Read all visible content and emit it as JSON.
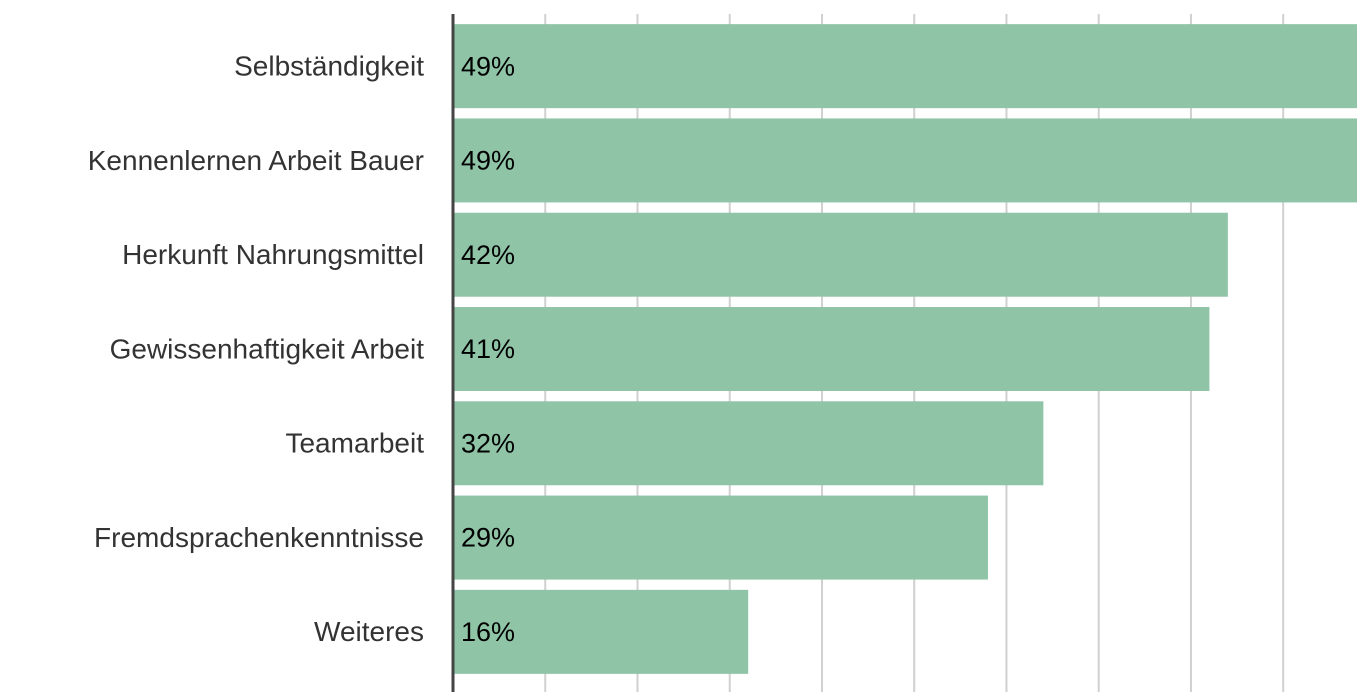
{
  "chart_data": {
    "type": "bar",
    "orientation": "horizontal",
    "categories": [
      "Selbständigkeit",
      "Kennenlernen Arbeit Bauer",
      "Herkunft Nahrungsmittel",
      "Gewissenhaftigkeit Arbeit",
      "Teamarbeit",
      "Fremdsprachenkenntnisse",
      "Weiteres"
    ],
    "values": [
      49,
      49,
      42,
      41,
      32,
      29,
      16
    ],
    "value_labels": [
      "49%",
      "49%",
      "42%",
      "41%",
      "32%",
      "29%",
      "16%"
    ],
    "color": "#8fc4a7",
    "xlim": [
      0,
      49
    ],
    "xticks": [
      0,
      5,
      10,
      15,
      20,
      25,
      30,
      35,
      40,
      45
    ],
    "grid": true
  }
}
